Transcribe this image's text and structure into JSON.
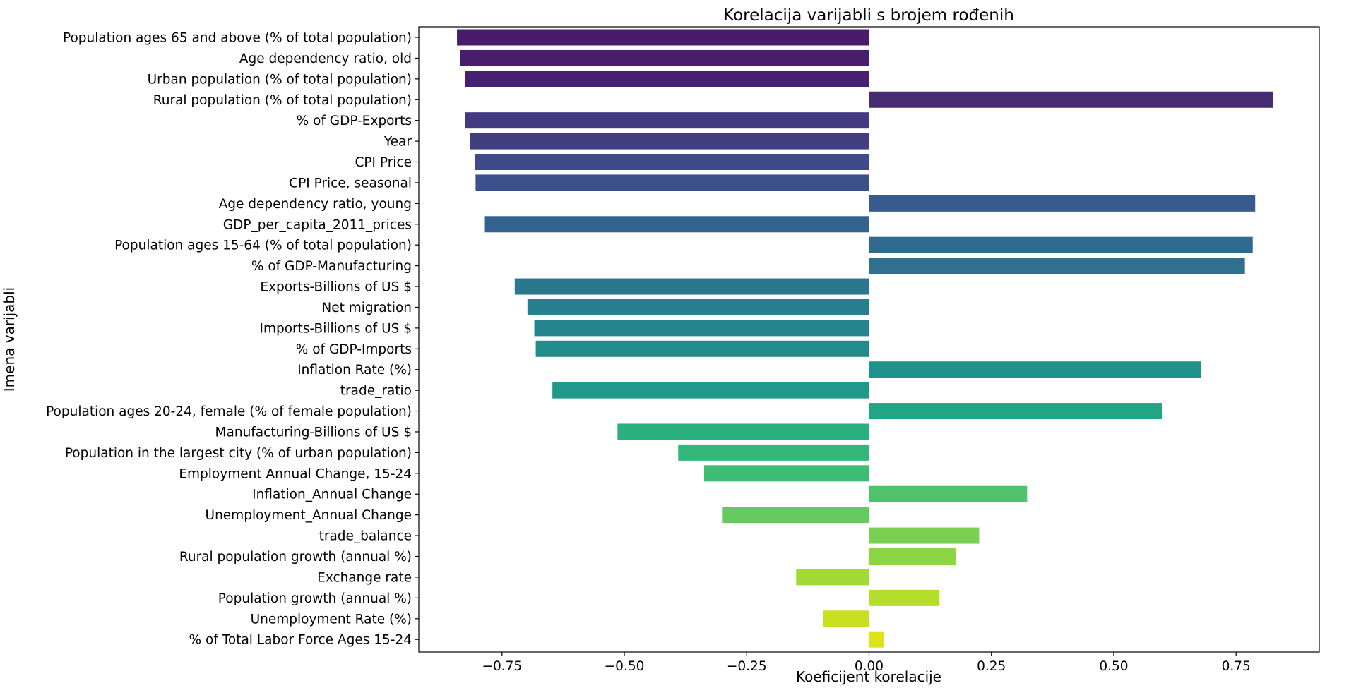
{
  "chart_data": {
    "type": "bar",
    "orientation": "horizontal",
    "title": "Korelacija varijabli s brojem rođenih",
    "xlabel": "Koeficijent korelacije",
    "ylabel": "Imena varijabli",
    "xlim": [
      -0.92,
      0.92
    ],
    "xticks": [
      -0.75,
      -0.5,
      -0.25,
      0.0,
      0.25,
      0.5,
      0.75
    ],
    "xtick_labels": [
      "−0.75",
      "−0.50",
      "−0.25",
      "0.00",
      "0.25",
      "0.50",
      "0.75"
    ],
    "grid": false,
    "palette": "viridis",
    "categories": [
      "Population ages 65 and above (% of total population)",
      "Age dependency ratio, old",
      "Urban population (% of total population)",
      "Rural population (% of total population)",
      "% of GDP-Exports",
      "Year",
      "CPI Price",
      "CPI Price, seasonal",
      "Age dependency ratio, young",
      "GDP_per_capita_2011_prices",
      "Population ages 15-64 (% of total population)",
      "% of GDP-Manufacturing",
      "Exports-Billions of US $",
      "Net migration",
      "Imports-Billions of US $",
      "% of GDP-Imports",
      "Inflation Rate (%)",
      "trade_ratio",
      "Population ages 20-24, female (% of female population)",
      "Manufacturing-Billions of US $",
      "Population in the largest city (% of urban population)",
      "Employment Annual Change, 15-24",
      "Inflation_Annual Change",
      "Unemployment_Annual Change",
      "trade_balance",
      "Rural population growth (annual %)",
      "Exchange rate",
      "Population growth (annual %)",
      "Unemployment Rate (%)",
      "% of Total Labor Force Ages 15-24"
    ],
    "values": [
      -0.842,
      -0.835,
      -0.826,
      0.826,
      -0.826,
      -0.816,
      -0.806,
      -0.804,
      0.789,
      -0.785,
      0.784,
      0.768,
      -0.724,
      -0.698,
      -0.684,
      -0.681,
      0.678,
      -0.647,
      0.599,
      -0.514,
      -0.39,
      -0.337,
      0.323,
      -0.299,
      0.225,
      0.177,
      -0.149,
      0.144,
      -0.094,
      0.03
    ],
    "colors": [
      "#481b6d",
      "#481d6f",
      "#47216f",
      "#472a70",
      "#443a83",
      "#413f80",
      "#3e4a89",
      "#3b518b",
      "#375b8d",
      "#33638d",
      "#306a8e",
      "#2d718e",
      "#2a778e",
      "#277e8e",
      "#25858e",
      "#228c8d",
      "#20928c",
      "#1f998a",
      "#21a585",
      "#2ab07f",
      "#33b67a",
      "#3fbc73",
      "#4ec36b",
      "#65cb5e",
      "#7ad151",
      "#8bd646",
      "#a0da39",
      "#b4de2c",
      "#c8e020",
      "#dde318"
    ]
  }
}
